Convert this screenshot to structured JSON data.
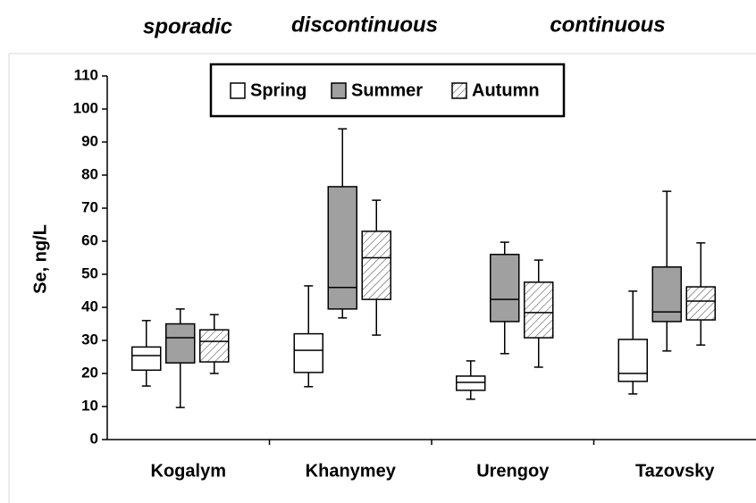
{
  "chart_data": {
    "type": "box",
    "annotations": [
      "sporadic",
      "discontinuous",
      "continuous"
    ],
    "ylabel": "Se, ng/L",
    "categories": [
      "Kogalym",
      "Khanymey",
      "Urengoy",
      "Tazovsky"
    ],
    "ylim": [
      0,
      110
    ],
    "yticks": [
      0,
      10,
      20,
      30,
      40,
      50,
      60,
      70,
      80,
      90,
      100,
      110
    ],
    "legend": "top",
    "series": [
      {
        "name": "Spring",
        "color": "#ffffff",
        "pattern": "none",
        "values": [
          {
            "min": 16.2,
            "q1": 21,
            "median": 25.4,
            "q3": 28,
            "max": 36
          },
          {
            "min": 16,
            "q1": 20.3,
            "median": 27,
            "q3": 32,
            "max": 46.5
          },
          {
            "min": 12.2,
            "q1": 14.9,
            "median": 17.3,
            "q3": 19.2,
            "max": 23.8
          },
          {
            "min": 13.8,
            "q1": 17.6,
            "median": 20,
            "q3": 30.3,
            "max": 44.9
          }
        ]
      },
      {
        "name": "Summer",
        "color": "#a0a0a0",
        "pattern": "none",
        "values": [
          {
            "min": 9.7,
            "q1": 23.2,
            "median": 30.8,
            "q3": 35,
            "max": 39.5
          },
          {
            "min": 36.8,
            "q1": 39.5,
            "median": 46,
            "q3": 76.5,
            "max": 94
          },
          {
            "min": 26,
            "q1": 35.7,
            "median": 42.4,
            "q3": 56,
            "max": 59.7
          },
          {
            "min": 26.8,
            "q1": 35.7,
            "median": 38.6,
            "q3": 52.2,
            "max": 75.1
          }
        ]
      },
      {
        "name": "Autumn",
        "color": "#ffffff",
        "pattern": "hatch",
        "values": [
          {
            "min": 20,
            "q1": 23.5,
            "median": 29.7,
            "q3": 33.2,
            "max": 37.8
          },
          {
            "min": 31.6,
            "q1": 42.4,
            "median": 55,
            "q3": 63,
            "max": 72.4
          },
          {
            "min": 21.9,
            "q1": 30.8,
            "median": 38.4,
            "q3": 47.6,
            "max": 54.3
          },
          {
            "min": 28.6,
            "q1": 36.2,
            "median": 41.9,
            "q3": 46.2,
            "max": 59.5
          }
        ]
      }
    ]
  }
}
